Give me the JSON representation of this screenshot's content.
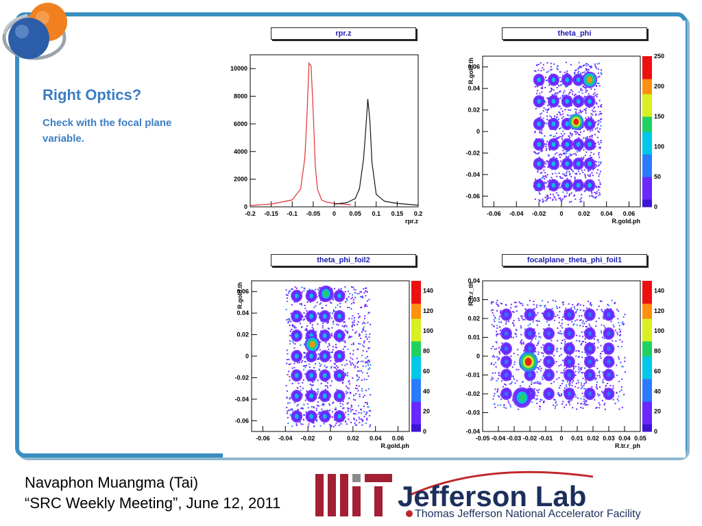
{
  "slide": {
    "title": "Right Optics?",
    "subtitle": "Check with the focal plane variable.",
    "footer_line1": "Navaphon Muangma (Tai)",
    "footer_line2": "“SRC Weekly Meeting”, June 12, 2011"
  },
  "logo": {
    "brand": "Jefferson Lab",
    "tagline": "Thomas Jefferson National Accelerator Facility",
    "mit": "MIT"
  },
  "colors": {
    "frame": "#3a8fc0",
    "title_text": "#3b7dc3",
    "histo_red": "#e03030",
    "histo_black": "#111111",
    "ptitle_text": "#1a1ab0"
  },
  "chart_data": [
    {
      "type": "line",
      "title": "rpr.z",
      "xlabel": "rpr.z",
      "ylabel": "",
      "xlim": [
        -0.2,
        0.2
      ],
      "ylim": [
        0,
        11000
      ],
      "xticks": [
        "-0.2",
        "-0.15",
        "-0.1",
        "-0.05",
        "0",
        "0.05",
        "0.1",
        "0.15",
        "0.2"
      ],
      "yticks": [
        "0",
        "2000",
        "4000",
        "6000",
        "8000",
        "10000"
      ],
      "series": [
        {
          "color": "#e03030",
          "x": [
            -0.2,
            -0.15,
            -0.1,
            -0.08,
            -0.07,
            -0.065,
            -0.06,
            -0.055,
            -0.05,
            -0.045,
            -0.04,
            -0.03,
            -0.02,
            0.0,
            0.02,
            0.04
          ],
          "y": [
            100,
            200,
            500,
            1300,
            3500,
            6500,
            10400,
            10200,
            6800,
            3000,
            1300,
            500,
            350,
            250,
            200,
            150
          ]
        },
        {
          "color": "#111111",
          "x": [
            0.0,
            0.03,
            0.05,
            0.06,
            0.07,
            0.075,
            0.08,
            0.085,
            0.09,
            0.1,
            0.12,
            0.15,
            0.2
          ],
          "y": [
            200,
            300,
            600,
            1300,
            3500,
            5500,
            7800,
            6200,
            3200,
            900,
            400,
            250,
            120
          ]
        }
      ]
    },
    {
      "type": "heatmap",
      "title": "theta_phi",
      "xlabel": "R.gold.ph",
      "ylabel": "R.gold.th",
      "xlim": [
        -0.07,
        0.07
      ],
      "ylim": [
        -0.07,
        0.07
      ],
      "xticks": [
        "-0.06",
        "-0.04",
        "-0.02",
        "0",
        "0.02",
        "0.04",
        "0.06"
      ],
      "yticks": [
        "-0.06",
        "-0.04",
        "-0.02",
        "0",
        "0.02",
        "0.04",
        "0.06"
      ],
      "zticks": [
        "0",
        "50",
        "100",
        "150",
        "200",
        "250"
      ]
    },
    {
      "type": "heatmap",
      "title": "theta_phi_foil2",
      "xlabel": "R.gold.ph",
      "ylabel": "R.gold.th",
      "xlim": [
        -0.07,
        0.07
      ],
      "ylim": [
        -0.07,
        0.07
      ],
      "xticks": [
        "-0.06",
        "-0.04",
        "-0.02",
        "0",
        "0.02",
        "0.04",
        "0.06"
      ],
      "yticks": [
        "-0.06",
        "-0.04",
        "-0.02",
        "0",
        "0.02",
        "0.04",
        "0.06"
      ],
      "zticks": [
        "0",
        "20",
        "40",
        "60",
        "80",
        "100",
        "120",
        "140"
      ]
    },
    {
      "type": "heatmap",
      "title": "focalplane_theta_phi_foil1",
      "xlabel": "R.tr.r_ph",
      "ylabel": "R.tr.r_th",
      "xlim": [
        -0.05,
        0.05
      ],
      "ylim": [
        -0.04,
        0.04
      ],
      "xticks": [
        "-0.05",
        "-0.04",
        "-0.03",
        "-0.02",
        "-0.01",
        "0",
        "0.01",
        "0.02",
        "0.03",
        "0.04",
        "0.05"
      ],
      "yticks": [
        "-0.04",
        "-0.03",
        "-0.02",
        "-0.01",
        "0",
        "0.01",
        "0.02",
        "0.03",
        "0.04"
      ],
      "zticks": [
        "0",
        "20",
        "40",
        "60",
        "80",
        "100",
        "120",
        "140"
      ]
    }
  ]
}
